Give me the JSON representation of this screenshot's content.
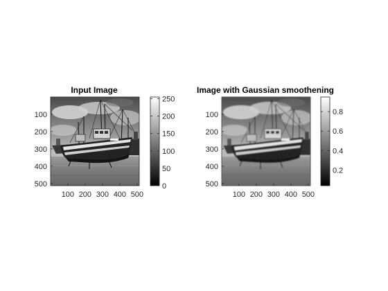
{
  "chart_data": [
    {
      "type": "image",
      "title": "Input Image",
      "x_ticks": [
        100,
        200,
        300,
        400,
        500
      ],
      "y_ticks": [
        100,
        200,
        300,
        400,
        500
      ],
      "xlim": [
        0.5,
        512.5
      ],
      "ylim": [
        0.5,
        512.5
      ],
      "image_content": "grayscale photo of fishing boats on a beach",
      "colorbar": {
        "colormap": "gray",
        "ticks": [
          0,
          50,
          100,
          150,
          200,
          250
        ],
        "range": [
          0,
          255
        ]
      }
    },
    {
      "type": "image",
      "title": "Image with Gaussian smoothening",
      "x_ticks": [
        100,
        200,
        300,
        400,
        500
      ],
      "y_ticks": [
        100,
        200,
        300,
        400,
        500
      ],
      "xlim": [
        0.5,
        512.5
      ],
      "ylim": [
        0.5,
        512.5
      ],
      "image_content": "smoothed grayscale photo of fishing boats on a beach",
      "colorbar": {
        "colormap": "gray",
        "ticks": [
          0.2,
          0.4,
          0.6,
          0.8
        ],
        "range": [
          0.04,
          0.95
        ]
      }
    }
  ],
  "colors": {
    "axis": "#262626",
    "background": "#ffffff"
  }
}
